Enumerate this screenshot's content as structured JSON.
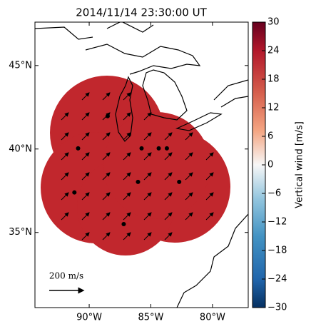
{
  "chart_data": {
    "type": "map",
    "title": "2014/11/14 23:30:00 UT",
    "xlim": [
      -94.4,
      -77.1
    ],
    "ylim": [
      30.5,
      47.6
    ],
    "xticks": [
      {
        "value": -90,
        "label": "90°W"
      },
      {
        "value": -85,
        "label": "85°W"
      },
      {
        "value": -80,
        "label": "80°W"
      }
    ],
    "yticks": [
      {
        "value": 35,
        "label": "35°N"
      },
      {
        "value": 40,
        "label": "40°N"
      },
      {
        "value": 45,
        "label": "45°N"
      }
    ],
    "sites": {
      "lon": [
        -88.5,
        -90.9,
        -85.75,
        -84.36,
        -83.7,
        -86.04,
        -82.7,
        -91.2,
        -87.2
      ],
      "lat": [
        41.97,
        40.04,
        40.04,
        40.04,
        40.04,
        38.03,
        38.03,
        37.4,
        35.5
      ]
    },
    "field_color": "#c1272d",
    "scale_label": "200 m/s",
    "colorbar": {
      "label": "Vertical wind [m/s]",
      "lim": [
        -30,
        30
      ],
      "ticks": [
        {
          "value": -30,
          "label": "−30"
        },
        {
          "value": -24,
          "label": "−24"
        },
        {
          "value": -18,
          "label": "−18"
        },
        {
          "value": -12,
          "label": "−12"
        },
        {
          "value": -6,
          "label": "−6"
        },
        0,
        6,
        12,
        18,
        24,
        30
      ]
    }
  }
}
